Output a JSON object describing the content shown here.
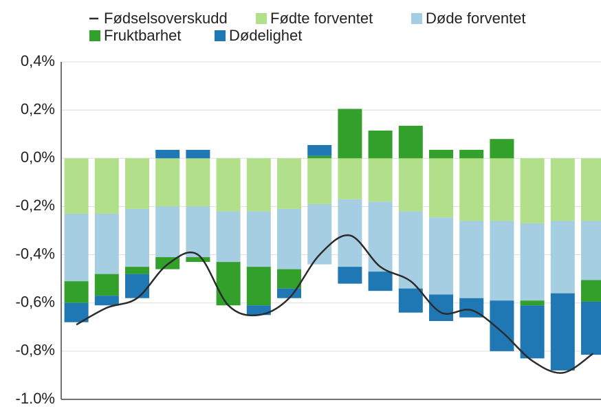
{
  "chart_data": {
    "type": "bar",
    "stacked": true,
    "categories": [
      null,
      null,
      null,
      null,
      null,
      null,
      null,
      null,
      null,
      null,
      null,
      null,
      null,
      null,
      null,
      null,
      null,
      null
    ],
    "series": [
      {
        "name": "Fødselsoverskudd",
        "type": "line",
        "color": "#2b2b2b",
        "values": [
          -0.69,
          -0.62,
          -0.58,
          -0.44,
          -0.4,
          -0.61,
          -0.65,
          -0.58,
          -0.4,
          -0.32,
          -0.45,
          -0.51,
          -0.64,
          -0.63,
          -0.72,
          -0.84,
          -0.89,
          -0.81
        ]
      },
      {
        "name": "Fødte forventet",
        "type": "bar",
        "color": "#b2df8a",
        "values": [
          -0.23,
          -0.23,
          -0.21,
          -0.2,
          -0.2,
          -0.22,
          -0.22,
          -0.21,
          -0.19,
          -0.17,
          -0.18,
          -0.22,
          -0.245,
          -0.26,
          -0.26,
          -0.27,
          -0.26,
          -0.26
        ]
      },
      {
        "name": "Døde forventet",
        "type": "bar",
        "color": "#a6cee3",
        "values": [
          -0.28,
          -0.25,
          -0.24,
          -0.21,
          -0.21,
          -0.21,
          -0.23,
          -0.25,
          -0.25,
          -0.28,
          -0.29,
          -0.32,
          -0.32,
          -0.32,
          -0.33,
          -0.32,
          -0.3,
          -0.245
        ]
      },
      {
        "name": "Fruktbarhet",
        "type": "bar",
        "color": "#33a02c",
        "values": [
          -0.09,
          -0.09,
          -0.03,
          -0.05,
          -0.02,
          -0.18,
          -0.16,
          -0.08,
          0.01,
          0.205,
          0.115,
          0.135,
          0.035,
          0.035,
          0.08,
          -0.02,
          0,
          -0.09
        ]
      },
      {
        "name": "Dødelighet",
        "type": "bar",
        "color": "#1f78b4",
        "values": [
          -0.08,
          -0.04,
          -0.1,
          0.035,
          0.035,
          0,
          -0.04,
          -0.04,
          0.045,
          -0.07,
          -0.08,
          -0.1,
          -0.11,
          -0.08,
          -0.21,
          -0.22,
          -0.32,
          -0.22
        ]
      }
    ],
    "ylim": [
      -1.0,
      0.4
    ],
    "yticks": [
      {
        "value": 0.4,
        "label": "0,4%"
      },
      {
        "value": 0.2,
        "label": "0,2%"
      },
      {
        "value": 0,
        "label": "0,0%"
      },
      {
        "value": -0.2,
        "label": "-0,2%"
      },
      {
        "value": -0.4,
        "label": "-0,4%"
      },
      {
        "value": -0.6,
        "label": "-0,6%"
      },
      {
        "value": -0.8,
        "label": "-0,8%"
      },
      {
        "value": -1.0,
        "label": "-1.0%"
      }
    ],
    "grid": true
  }
}
